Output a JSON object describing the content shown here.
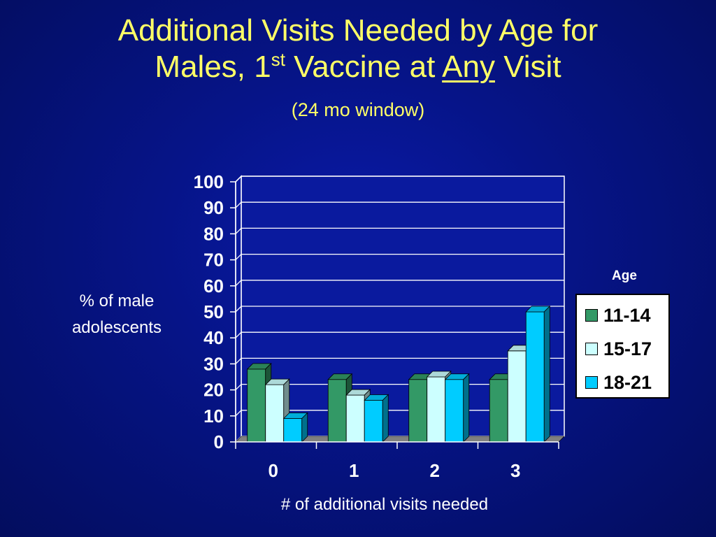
{
  "slide": {
    "title_line1": "Additional Visits Needed by Age for",
    "title_line2_pre": "Males, 1",
    "title_line2_sup": "st",
    "title_line2_mid": " Vaccine at ",
    "title_line2_underlined": "Any",
    "title_line2_post": " Visit",
    "subtitle": "(24 mo window)"
  },
  "chart_data": {
    "type": "bar",
    "title": "Additional Visits Needed by Age for Males, 1st Vaccine at Any Visit",
    "subtitle": "(24 mo window)",
    "categories": [
      "0",
      "1",
      "2",
      "3"
    ],
    "series": [
      {
        "name": "11-14",
        "values": [
          28,
          24,
          24,
          24
        ],
        "color": "#339966"
      },
      {
        "name": "15-17",
        "values": [
          22,
          18,
          25,
          35
        ],
        "color": "#ccffff"
      },
      {
        "name": "18-21",
        "values": [
          9,
          16,
          24,
          50
        ],
        "color": "#00ccff"
      }
    ],
    "xlabel": "# of additional visits needed",
    "ylabel_line1": "% of male",
    "ylabel_line2": "adolescents",
    "ylim": [
      0,
      100
    ],
    "yticks": [
      "0",
      "10",
      "20",
      "30",
      "40",
      "50",
      "60",
      "70",
      "80",
      "90",
      "100"
    ],
    "legend_title": "Age",
    "legend_position": "right",
    "grid": true,
    "style": "3d-bar"
  }
}
